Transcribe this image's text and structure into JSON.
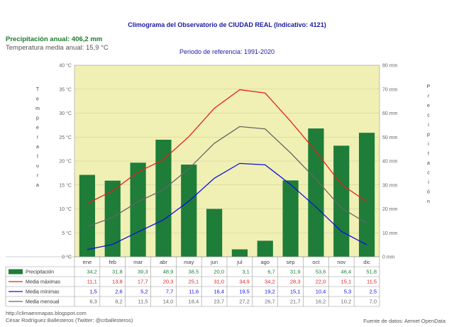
{
  "title": "Climograma del Observatorio de CIUDAD REAL (Indicativo: 4121)",
  "summary": {
    "precip_annual": "Precipitación anual: 406,2 mm",
    "temp_annual": "Temperatura media anual: 15,9 °C"
  },
  "reference_period": "Periodo de referencia: 1991-2020",
  "footer": {
    "blog": "http://climaenmapas.blogspot.com",
    "author": "César Rodríguez Ballesteros (Twitter: @crballesteros)",
    "source": "Fuente de datos: Aemet OpenData"
  },
  "colors": {
    "plot_bg": "#f0f0b4",
    "bar": "#1e7d38",
    "max": "#e32020",
    "min": "#1010e0",
    "mean": "#666666"
  },
  "chart_data": {
    "type": "bar+line",
    "categories": [
      "ene",
      "feb",
      "mar",
      "abr",
      "may",
      "jun",
      "jul",
      "ago",
      "sep",
      "oct",
      "nov",
      "dic"
    ],
    "ylabel": "Temperatura",
    "y2label": "Precipitación",
    "ylim": [
      0,
      40
    ],
    "y2lim": [
      0,
      80
    ],
    "y_ticks": [
      "0 °C",
      "5 °C",
      "10 °C",
      "15 °C",
      "20 °C",
      "25 °C",
      "30 °C",
      "35 °C",
      "40 °C"
    ],
    "y2_ticks": [
      "0 mm",
      "10 mm",
      "20 mm",
      "30 mm",
      "40 mm",
      "50 mm",
      "60 mm",
      "70 mm",
      "80 mm"
    ],
    "series": [
      {
        "name": "Precipitación",
        "type": "bar",
        "axis": "y2",
        "values": [
          34.2,
          31.8,
          39.3,
          48.9,
          38.5,
          20.0,
          3.1,
          6.7,
          31.9,
          53.6,
          46.4,
          51.8
        ],
        "labels": [
          "34,2",
          "31,8",
          "39,3",
          "48,9",
          "38,5",
          "20,0",
          "3,1",
          "6,7",
          "31,9",
          "53,6",
          "46,4",
          "51,8"
        ]
      },
      {
        "name": "Media máximas",
        "type": "line",
        "axis": "y",
        "values": [
          11.1,
          13.8,
          17.7,
          20.3,
          25.1,
          31.0,
          34.9,
          34.2,
          28.3,
          22.0,
          15.1,
          11.5
        ],
        "labels": [
          "11,1",
          "13,8",
          "17,7",
          "20,3",
          "25,1",
          "31,0",
          "34,9",
          "34,2",
          "28,3",
          "22,0",
          "15,1",
          "11,5"
        ]
      },
      {
        "name": "Media mínimas",
        "type": "line",
        "axis": "y",
        "values": [
          1.5,
          2.6,
          5.2,
          7.7,
          11.6,
          16.4,
          19.5,
          19.2,
          15.1,
          10.4,
          5.3,
          2.5
        ],
        "labels": [
          "1,5",
          "2,6",
          "5,2",
          "7,7",
          "11,6",
          "16,4",
          "19,5",
          "19,2",
          "15,1",
          "10,4",
          "5,3",
          "2,5"
        ]
      },
      {
        "name": "Media mensual",
        "type": "line",
        "axis": "y",
        "values": [
          6.3,
          8.2,
          11.5,
          14.0,
          18.4,
          23.7,
          27.2,
          26.7,
          21.7,
          16.2,
          10.2,
          7.0
        ],
        "labels": [
          "6,3",
          "8,2",
          "11,5",
          "14,0",
          "18,4",
          "23,7",
          "27,2",
          "26,7",
          "21,7",
          "16,2",
          "10,2",
          "7,0"
        ]
      }
    ],
    "grid": true,
    "legend": "table-below"
  }
}
